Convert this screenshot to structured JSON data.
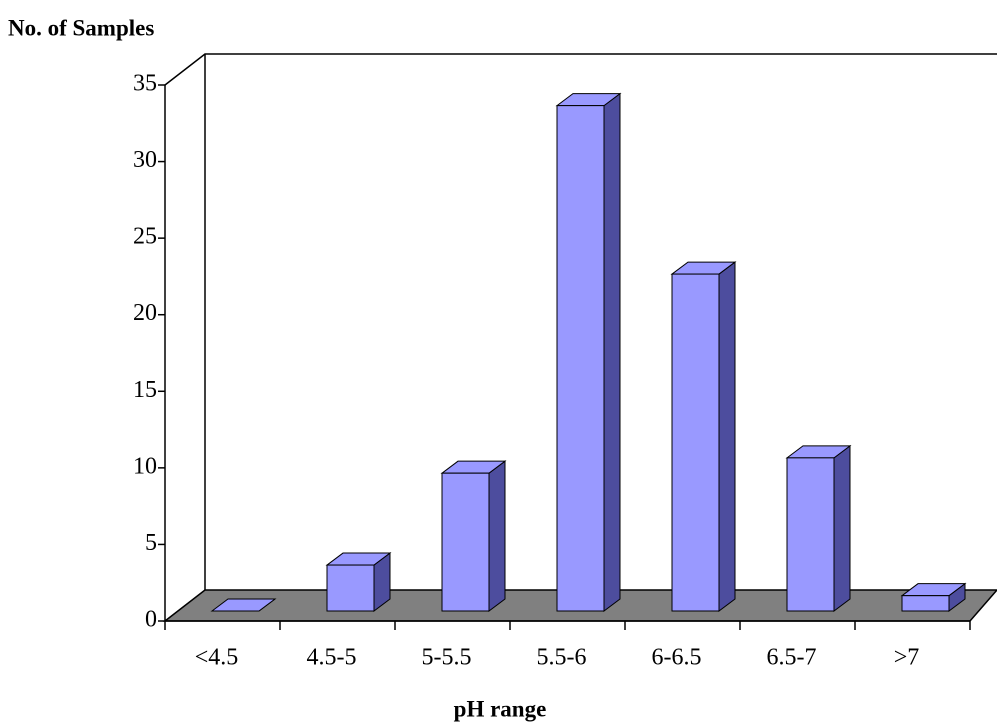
{
  "chart_data": {
    "type": "bar",
    "ylabel": "No. of Samples",
    "xlabel": "pH range",
    "categories": [
      "<4.5",
      "4.5-5",
      "5-5.5",
      "5.5-6",
      "6-6.5",
      "6.5-7",
      ">7"
    ],
    "values": [
      0,
      3,
      9,
      33,
      22,
      10,
      1
    ],
    "color": "#9999ff",
    "ylim": [
      0,
      35
    ],
    "yticks": [
      0,
      5,
      10,
      15,
      20,
      25,
      30,
      35
    ]
  }
}
